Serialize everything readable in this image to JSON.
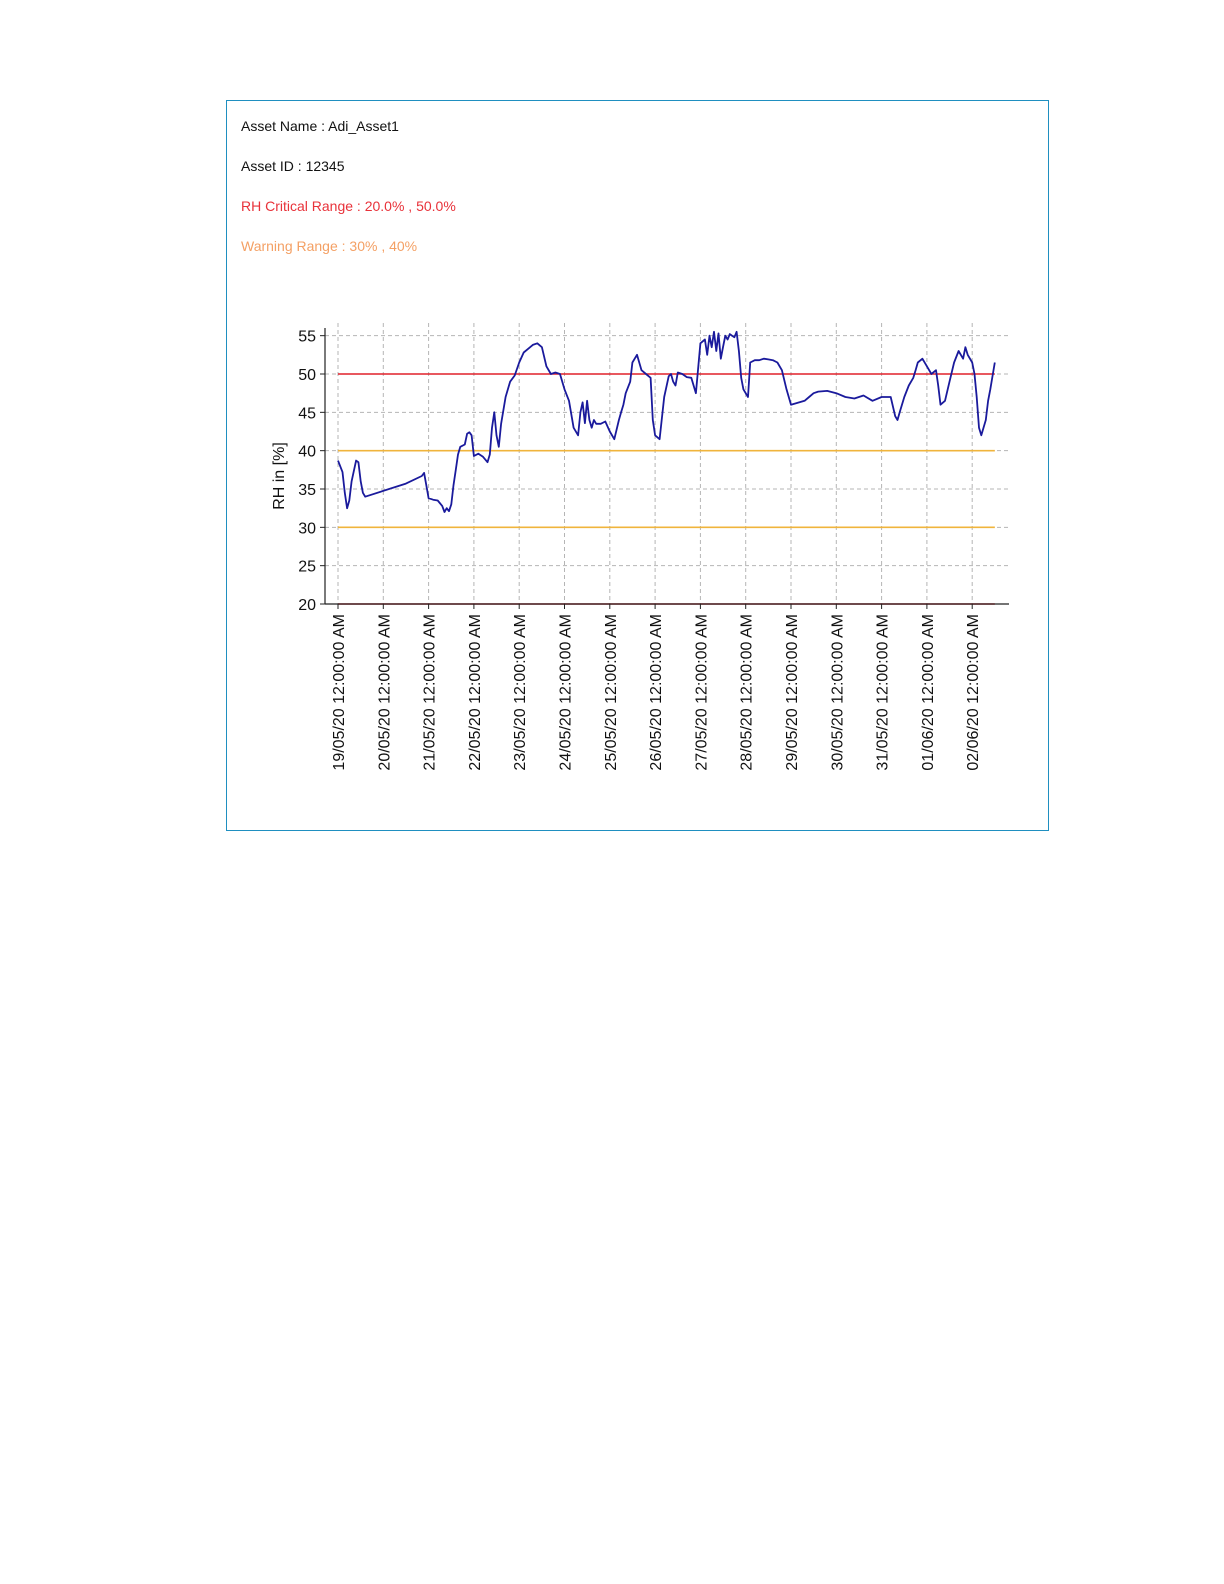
{
  "header": {
    "asset_name": "Asset Name : Adi_Asset1",
    "asset_id": "Asset ID : 12345",
    "critical_range": "RH Critical Range : 20.0% , 50.0%",
    "warning_range": "Warning Range : 30% , 40%"
  },
  "colors": {
    "series": "#1a1a9c",
    "critical": "#e0202a",
    "warning": "#f0b43c",
    "critical_text": "#e8323a",
    "warning_text": "#f4a064",
    "frame": "#1f8fc0"
  },
  "chart_data": {
    "type": "line",
    "title": "",
    "xlabel": "",
    "ylabel": "RH in [%]",
    "ylim": [
      20,
      56
    ],
    "yticks": [
      20,
      25,
      30,
      35,
      40,
      45,
      50,
      55
    ],
    "grid": true,
    "x_tick_labels": [
      "19/05/20 12:00:00 AM",
      "20/05/20 12:00:00 AM",
      "21/05/20 12:00:00 AM",
      "22/05/20 12:00:00 AM",
      "23/05/20 12:00:00 AM",
      "24/05/20 12:00:00 AM",
      "25/05/20 12:00:00 AM",
      "26/05/20 12:00:00 AM",
      "27/05/20 12:00:00 AM",
      "28/05/20 12:00:00 AM",
      "29/05/20 12:00:00 AM",
      "30/05/20 12:00:00 AM",
      "31/05/20 12:00:00 AM",
      "01/06/20 12:00:00 AM",
      "02/06/20 12:00:00 AM"
    ],
    "reference_lines": [
      {
        "value": 20,
        "kind": "critical"
      },
      {
        "value": 50,
        "kind": "critical"
      },
      {
        "value": 30,
        "kind": "warning"
      },
      {
        "value": 40,
        "kind": "warning"
      }
    ],
    "series": [
      {
        "x": [
          0.0,
          0.1,
          0.15,
          0.2,
          0.25,
          0.3,
          0.4,
          0.45,
          0.5,
          0.55,
          0.6,
          1.5,
          1.85,
          1.9,
          1.95,
          2.0,
          2.1,
          2.2,
          2.3,
          2.35,
          2.4,
          2.45,
          2.5,
          2.55,
          2.6,
          2.65,
          2.7,
          2.8,
          2.85,
          2.9,
          2.95,
          3.0,
          3.1,
          3.2,
          3.3,
          3.35,
          3.4,
          3.45,
          3.5,
          3.55,
          3.6,
          3.7,
          3.8,
          3.9,
          4.0,
          4.1,
          4.2,
          4.3,
          4.4,
          4.5,
          4.6,
          4.7,
          4.8,
          4.9,
          5.0,
          5.1,
          5.2,
          5.3,
          5.35,
          5.4,
          5.45,
          5.5,
          5.55,
          5.6,
          5.65,
          5.7,
          5.8,
          5.9,
          6.0,
          6.1,
          6.2,
          6.25,
          6.3,
          6.35,
          6.45,
          6.5,
          6.6,
          6.7,
          6.8,
          6.9,
          6.95,
          7.0,
          7.1,
          7.2,
          7.3,
          7.35,
          7.4,
          7.45,
          7.5,
          7.6,
          7.7,
          7.8,
          7.9,
          8.0,
          8.1,
          8.15,
          8.2,
          8.25,
          8.3,
          8.35,
          8.4,
          8.45,
          8.5,
          8.55,
          8.6,
          8.65,
          8.7,
          8.75,
          8.8,
          8.85,
          8.9,
          8.95,
          9.0,
          9.05,
          9.1,
          9.2,
          9.3,
          9.4,
          9.5,
          9.6,
          9.7,
          9.8,
          9.9,
          10.0,
          10.3,
          10.4,
          10.5,
          10.6,
          10.8,
          11.0,
          11.2,
          11.4,
          11.6,
          11.8,
          12.0,
          12.2,
          12.3,
          12.35,
          12.4,
          12.5,
          12.6,
          12.7,
          12.75,
          12.8,
          12.9,
          13.0,
          13.1,
          13.2,
          13.25,
          13.3,
          13.4,
          13.5,
          13.6,
          13.7,
          13.8,
          13.85,
          13.9,
          14.0,
          14.05,
          14.1,
          14.15,
          14.2,
          14.3,
          14.35,
          14.4,
          14.5
        ],
        "values": [
          38.7,
          37.2,
          34.5,
          32.5,
          33.5,
          36.0,
          38.7,
          38.5,
          36.0,
          34.5,
          34.0,
          35.7,
          36.7,
          37.1,
          35.5,
          33.8,
          33.6,
          33.5,
          32.8,
          32.0,
          32.5,
          32.1,
          33.0,
          35.5,
          37.5,
          39.5,
          40.5,
          40.8,
          42.2,
          42.4,
          42.0,
          39.3,
          39.6,
          39.2,
          38.5,
          39.5,
          43.0,
          45.0,
          42.0,
          40.5,
          43.5,
          47.0,
          49.0,
          49.8,
          51.5,
          52.8,
          53.3,
          53.8,
          54.0,
          53.5,
          51.0,
          50.0,
          50.2,
          50.0,
          48.0,
          46.5,
          43.0,
          42.0,
          45.0,
          46.3,
          43.6,
          46.5,
          44.0,
          43.0,
          44.0,
          43.5,
          43.5,
          43.8,
          42.5,
          41.5,
          44.0,
          45.0,
          46.0,
          47.5,
          49.0,
          51.5,
          52.5,
          50.5,
          50.0,
          49.5,
          44.0,
          42.0,
          41.5,
          47.0,
          49.7,
          50.0,
          49.0,
          48.5,
          50.2,
          50.0,
          49.6,
          49.5,
          47.5,
          54.0,
          54.5,
          52.5,
          55.0,
          53.5,
          55.5,
          53.0,
          55.3,
          52.0,
          53.5,
          55.0,
          54.5,
          55.2,
          55.0,
          54.8,
          55.5,
          53.0,
          49.5,
          48.0,
          47.5,
          47.0,
          51.5,
          51.8,
          51.8,
          52.0,
          51.9,
          51.8,
          51.5,
          50.5,
          48.0,
          46.0,
          46.5,
          47.0,
          47.5,
          47.7,
          47.8,
          47.5,
          47.0,
          46.8,
          47.2,
          46.5,
          47.0,
          47.0,
          44.5,
          44.0,
          45.0,
          47.0,
          48.5,
          49.5,
          50.5,
          51.5,
          52.0,
          51.0,
          50.0,
          50.5,
          48.5,
          46.0,
          46.5,
          49.0,
          51.5,
          53.0,
          52.0,
          53.5,
          52.5,
          51.5,
          50.0,
          47.0,
          43.0,
          42.0,
          44.0,
          46.5,
          48.0,
          51.5
        ]
      }
    ]
  }
}
